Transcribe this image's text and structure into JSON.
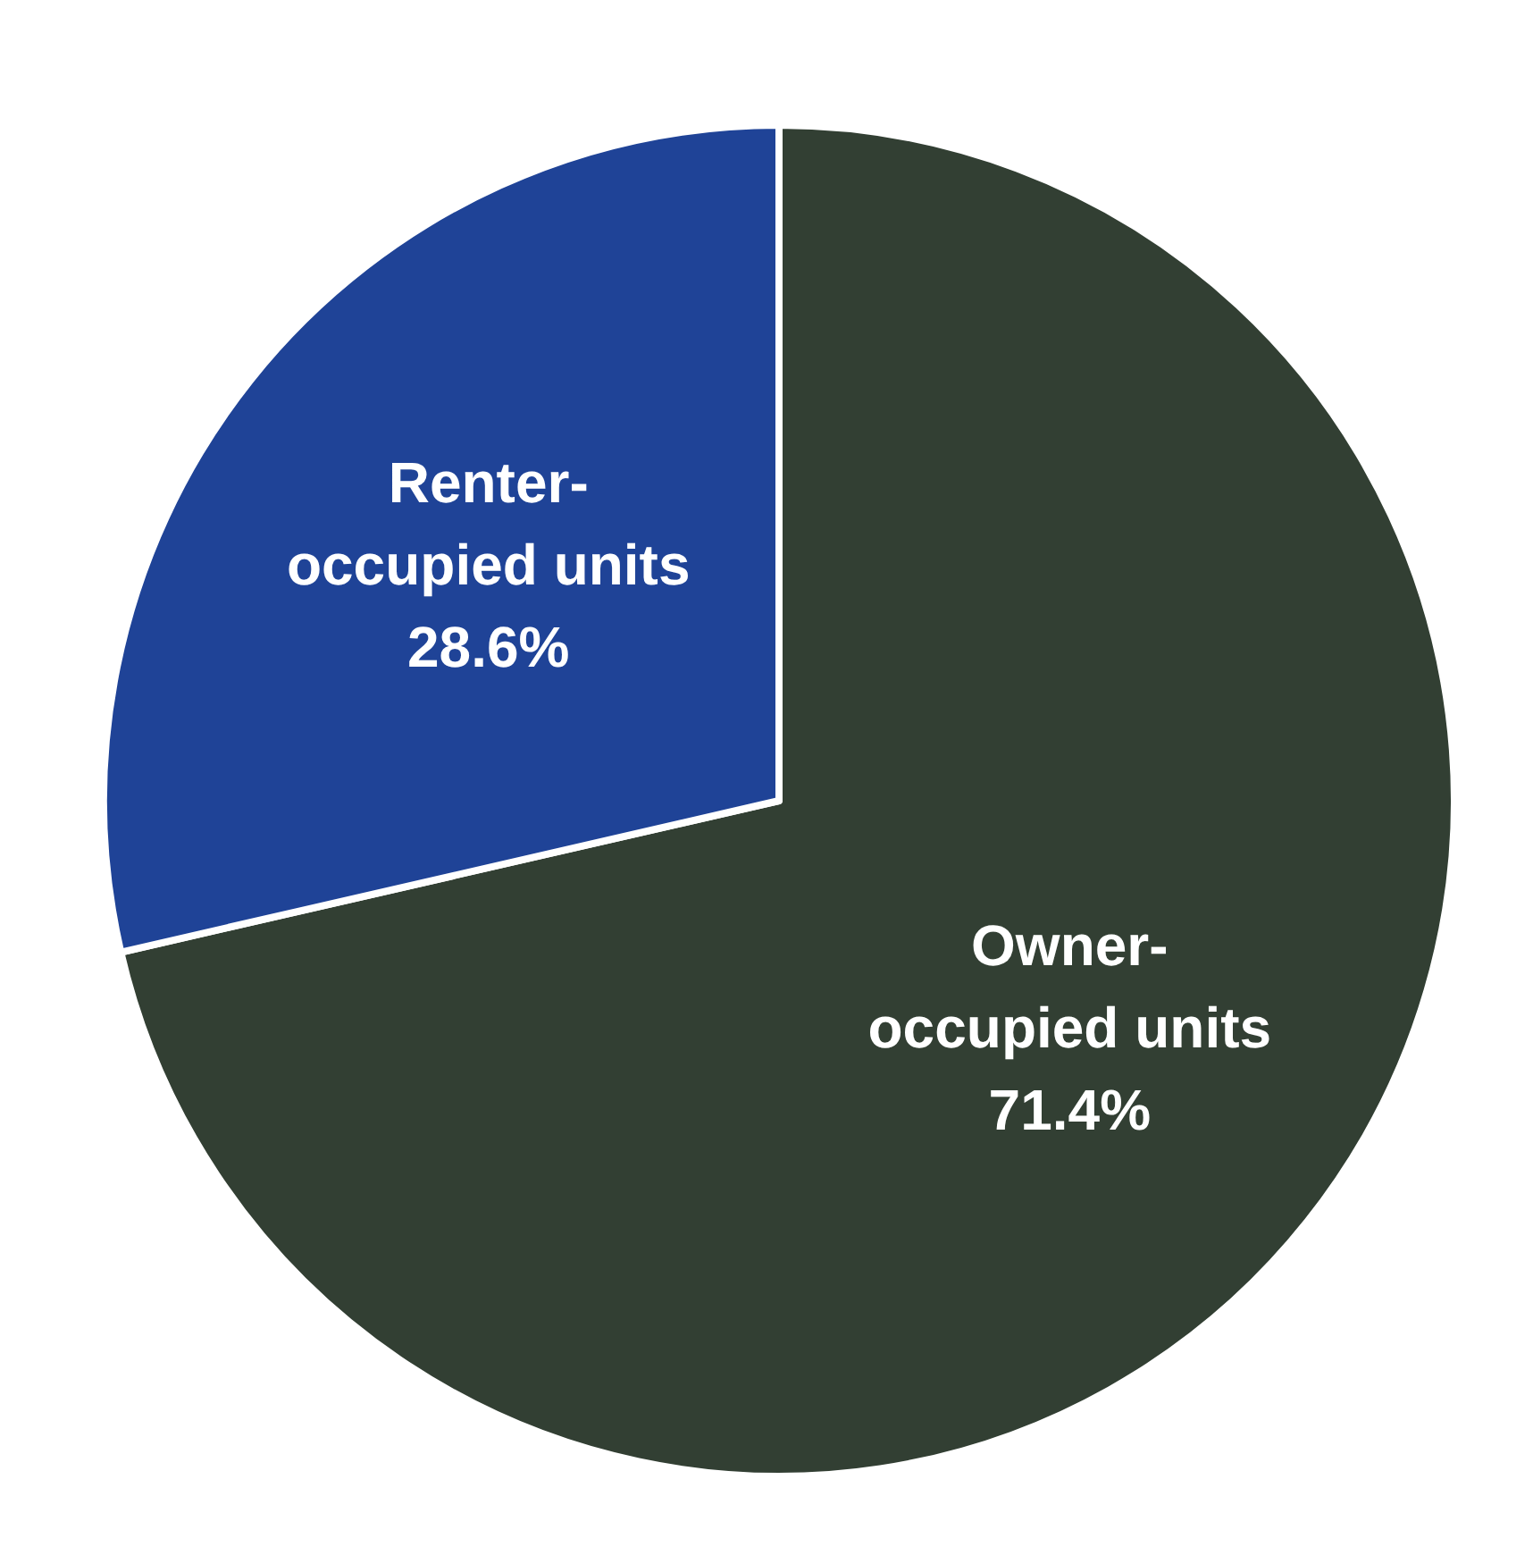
{
  "chart_data": {
    "type": "pie",
    "categories": [
      "Owner-occupied units",
      "Renter-occupied units"
    ],
    "values": [
      71.4,
      28.6
    ],
    "colors": [
      "#323f33",
      "#1f4397"
    ],
    "value_labels": [
      "71.4%",
      "28.6%"
    ]
  }
}
